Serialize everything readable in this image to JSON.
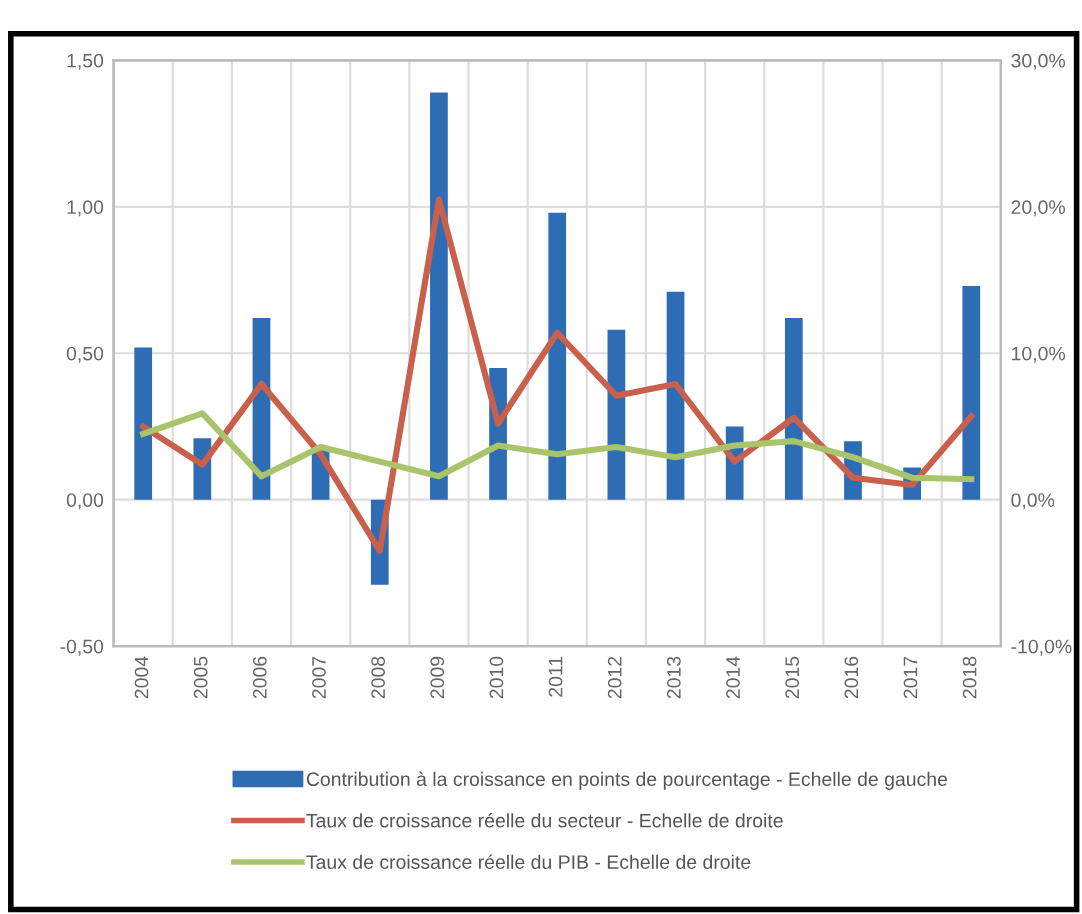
{
  "chart_data": {
    "type": "bar",
    "categories": [
      "2004",
      "2005",
      "2006",
      "2007",
      "2008",
      "2009",
      "2010",
      "2011",
      "2012",
      "2013",
      "2014",
      "2015",
      "2016",
      "2017",
      "2018"
    ],
    "series": [
      {
        "name": "Contribution à la croissance en points de pourcentage - Echelle de gauche",
        "color": "#2e6db4",
        "values": [
          0.52,
          0.21,
          0.62,
          0.18,
          -0.29,
          1.39,
          0.45,
          0.98,
          0.58,
          0.71,
          0.25,
          0.62,
          0.2,
          0.11,
          0.73
        ]
      },
      {
        "name": "Taux de croissance réelle du secteur - Echelle de droite",
        "type": "line",
        "axis": "y2",
        "color": "#c9604b",
        "values": [
          5.0,
          2.4,
          7.9,
          3.1,
          -3.5,
          20.5,
          5.2,
          11.4,
          7.1,
          7.9,
          2.6,
          5.6,
          1.5,
          1.0,
          5.7
        ]
      },
      {
        "name": "Taux de croissance réelle du PIB - Echelle de droite",
        "type": "line",
        "axis": "y2",
        "color": "#a9c46b",
        "values": [
          4.5,
          5.9,
          1.6,
          3.6,
          2.6,
          1.6,
          3.7,
          3.1,
          3.6,
          2.9,
          3.7,
          4.0,
          2.9,
          1.5,
          1.4
        ]
      }
    ],
    "ylim": [
      -0.5,
      1.5
    ],
    "yticks": [
      {
        "value": -0.5,
        "label": "-0,50"
      },
      {
        "value": 0,
        "label": "0,00"
      },
      {
        "value": 0.5,
        "label": "0,50"
      },
      {
        "value": 1.0,
        "label": "1,00"
      },
      {
        "value": 1.5,
        "label": "1,50"
      }
    ],
    "y2lim": [
      -10,
      30
    ],
    "y2ticks": [
      {
        "value": -10,
        "label": "-10,0%"
      },
      {
        "value": 0,
        "label": "0,0%"
      },
      {
        "value": 10,
        "label": "10,0%"
      },
      {
        "value": 20,
        "label": "20,0%"
      },
      {
        "value": 30,
        "label": "30,0%"
      }
    ],
    "grid": true,
    "legend": "bottom",
    "marker": "none",
    "line_style": "solid"
  }
}
